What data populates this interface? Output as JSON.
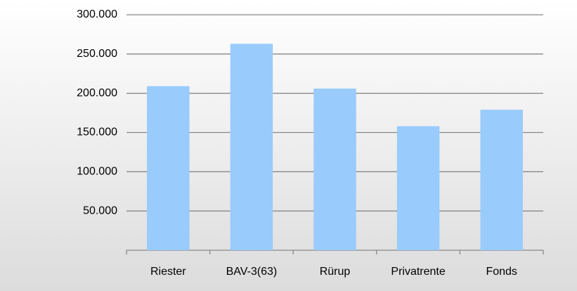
{
  "chart_data": {
    "type": "bar",
    "categories": [
      "Riester",
      "BAV-3(63)",
      "Rürup",
      "Privatrente",
      "Fonds"
    ],
    "values": [
      209000,
      263000,
      206000,
      158000,
      179000
    ],
    "color": "#99cbfd",
    "ylim": [
      0,
      300000
    ],
    "yticks": [
      {
        "value": 50000,
        "label": "50.000"
      },
      {
        "value": 100000,
        "label": "100.000"
      },
      {
        "value": 150000,
        "label": "150.000"
      },
      {
        "value": 200000,
        "label": "200.000"
      },
      {
        "value": 250000,
        "label": "250.000"
      },
      {
        "value": 300000,
        "label": "300.000"
      }
    ],
    "grid": true
  }
}
